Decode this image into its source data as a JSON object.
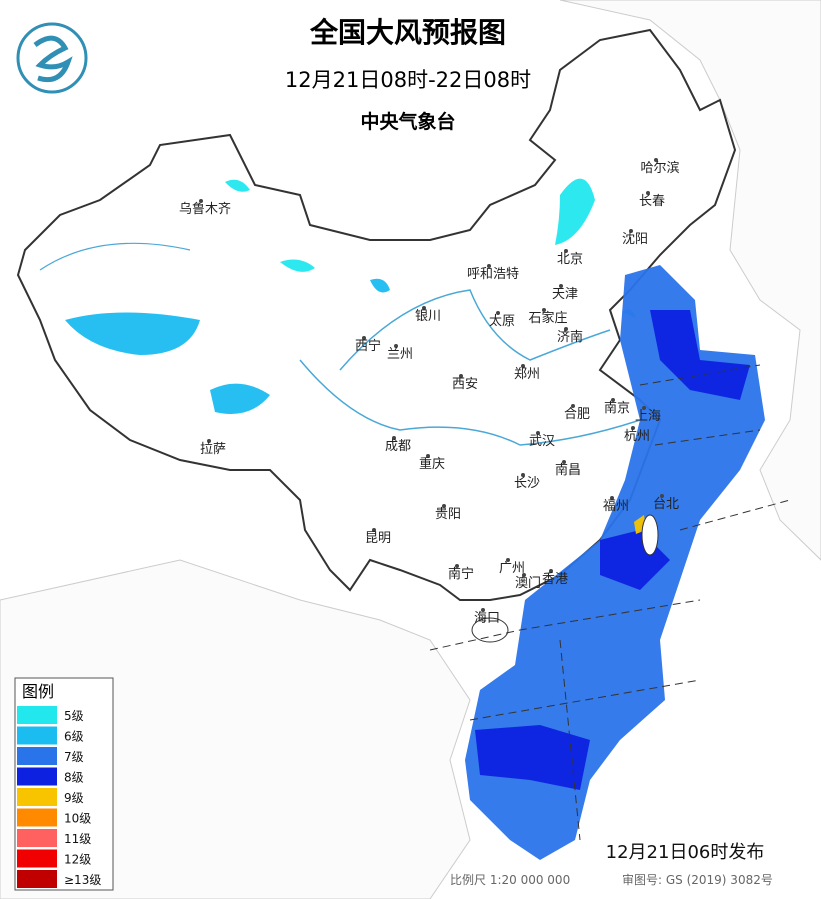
{
  "header": {
    "title": "全国大风预报图",
    "period": "12月21日08时-22日08时",
    "issuer": "中央气象台"
  },
  "cities": [
    "乌鲁木齐",
    "哈尔滨",
    "长春",
    "沈阳",
    "北京",
    "天津",
    "呼和浩特",
    "石家庄",
    "太原",
    "济南",
    "银川",
    "西宁",
    "兰州",
    "郑州",
    "西安",
    "南京",
    "上海",
    "合肥",
    "杭州",
    "武汉",
    "成都",
    "重庆",
    "拉萨",
    "长沙",
    "南昌",
    "福州",
    "台北",
    "贵阳",
    "昆明",
    "广州",
    "香港",
    "澳门",
    "南宁",
    "海口"
  ],
  "legend": {
    "title": "图例",
    "items": [
      {
        "label": "5级",
        "color": "#22e8ee"
      },
      {
        "label": "6级",
        "color": "#1bbcf0"
      },
      {
        "label": "7级",
        "color": "#2a74ea"
      },
      {
        "label": "8级",
        "color": "#0d22e0"
      },
      {
        "label": "9级",
        "color": "#f8c400"
      },
      {
        "label": "10级",
        "color": "#ff8a00"
      },
      {
        "label": "11级",
        "color": "#ff6060"
      },
      {
        "label": "12级",
        "color": "#f00000"
      },
      {
        "label": "≥13级",
        "color": "#c00000"
      }
    ]
  },
  "footer": {
    "issued": "12月21日06时发布",
    "scale": "比例尺 1:20 000 000",
    "approval": "审图号: GS (2019) 3082号"
  }
}
